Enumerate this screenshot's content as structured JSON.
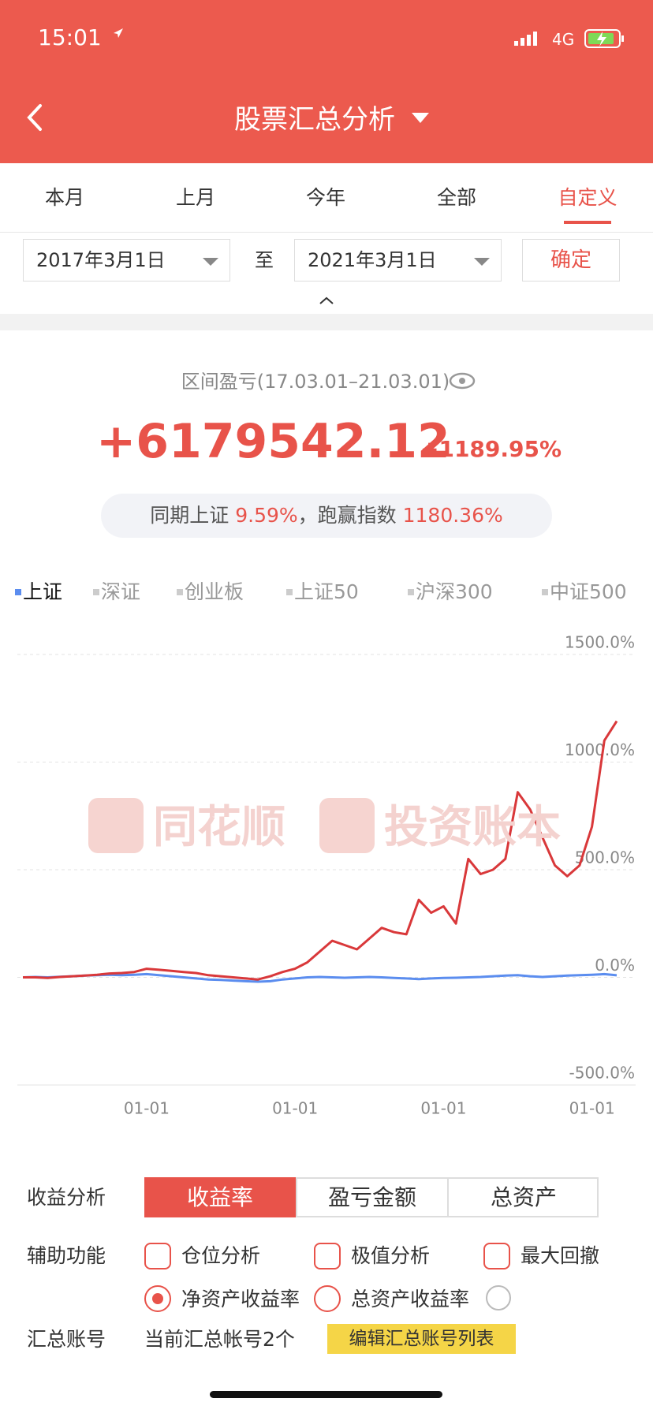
{
  "status_bar": {
    "time": "15:01",
    "network": "4G"
  },
  "header": {
    "title": "股票汇总分析"
  },
  "tabs": {
    "items": [
      "本月",
      "上月",
      "今年",
      "全部",
      "自定义"
    ],
    "active": 4
  },
  "date_range": {
    "start": "2017年3月1日",
    "separator": "至",
    "end": "2021年3月1日",
    "confirm": "确定"
  },
  "summary": {
    "label": "区间盈亏(17.03.01–21.03.01)",
    "amount": "+6179542.12",
    "percent": "+1189.95%",
    "benchmark_label": "同期上证",
    "benchmark_value": "9.59%",
    "beat_label": "，跑赢指数",
    "beat_value": "1180.36%"
  },
  "index_tabs": [
    "深证",
    "创业板",
    "上证50",
    "沪深300",
    "中证500"
  ],
  "watermark": [
    "同花顺",
    "投资账本"
  ],
  "chart_data": {
    "type": "line",
    "categories": [
      null,
      null,
      null,
      null,
      null,
      null,
      null,
      null,
      null,
      null,
      "01-01",
      null,
      null,
      null,
      null,
      null,
      null,
      null,
      null,
      null,
      null,
      null,
      "01-01",
      null,
      null,
      null,
      null,
      null,
      null,
      null,
      null,
      null,
      null,
      null,
      "01-01",
      null,
      null,
      null,
      null,
      null,
      null,
      null,
      null,
      null,
      null,
      null,
      "01-01",
      null,
      null
    ],
    "series": [
      {
        "name": "上证",
        "color": "#5b8def",
        "values": [
          0,
          2,
          0,
          3,
          5,
          8,
          10,
          12,
          10,
          12,
          15,
          10,
          5,
          0,
          -5,
          -10,
          -12,
          -15,
          -18,
          -20,
          -18,
          -10,
          -5,
          0,
          2,
          0,
          -2,
          0,
          2,
          0,
          -3,
          -5,
          -8,
          -5,
          -3,
          -2,
          0,
          2,
          5,
          8,
          10,
          5,
          2,
          5,
          8,
          10,
          12,
          15,
          9.59
        ]
      },
      {
        "color": "#d9383a",
        "values": [
          0,
          0,
          -3,
          2,
          5,
          8,
          12,
          18,
          20,
          25,
          40,
          35,
          30,
          25,
          20,
          10,
          5,
          0,
          -5,
          -10,
          5,
          25,
          40,
          70,
          120,
          170,
          150,
          130,
          180,
          230,
          210,
          200,
          360,
          300,
          330,
          250,
          550,
          480,
          500,
          550,
          860,
          780,
          650,
          520,
          470,
          520,
          700,
          1100,
          1190
        ]
      }
    ],
    "ylim": [
      -500,
      1500
    ],
    "yticks": [
      {
        "value": -500,
        "label": "-500.0%"
      },
      {
        "value": 0,
        "label": "0.0%"
      },
      {
        "value": 500,
        "label": "500.0%"
      },
      {
        "value": 1000,
        "label": "1000.0%"
      },
      {
        "value": 1500,
        "label": "1500.0%"
      }
    ],
    "grid": true
  },
  "controls": {
    "analysis_label": "收益分析",
    "segments": [
      "收益率",
      "盈亏金额",
      "总资产"
    ],
    "active_segment": 0,
    "aux_label": "辅助功能",
    "checkboxes": [
      "仓位分析",
      "极值分析",
      "最大回撤"
    ],
    "radios": [
      "净资产收益率",
      "总资产收益率"
    ],
    "selected_radio": 0,
    "account_label": "汇总账号",
    "account_text": "当前汇总帐号2个",
    "edit_button": "编辑汇总账号列表"
  }
}
